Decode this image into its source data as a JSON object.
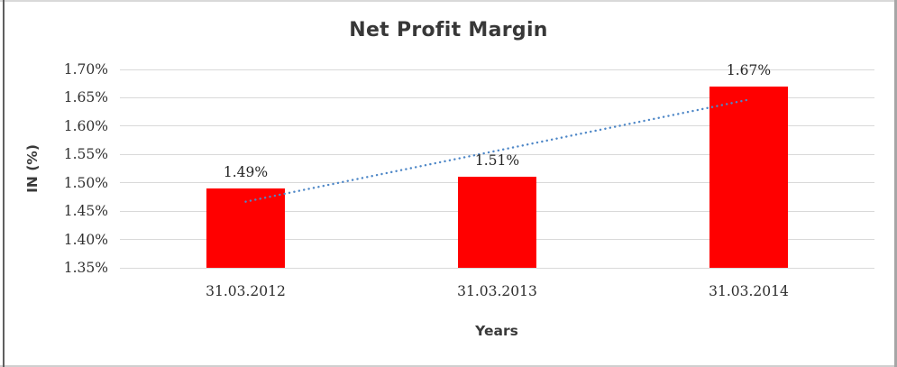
{
  "chart_data": {
    "type": "bar",
    "title": "Net Profit Margin",
    "xlabel": "Years",
    "ylabel": "IN (%)",
    "categories": [
      "31.03.2012",
      "31.03.2013",
      "31.03.2014"
    ],
    "values": [
      1.49,
      1.51,
      1.67
    ],
    "data_labels": [
      "1.49%",
      "1.51%",
      "1.67%"
    ],
    "ylim": [
      1.35,
      1.7
    ],
    "yticks": [
      {
        "label": "1.70%",
        "value": 1.7
      },
      {
        "label": "1.65%",
        "value": 1.65
      },
      {
        "label": "1.60%",
        "value": 1.6
      },
      {
        "label": "1.55%",
        "value": 1.55
      },
      {
        "label": "1.50%",
        "value": 1.5
      },
      {
        "label": "1.45%",
        "value": 1.45
      },
      {
        "label": "1.40%",
        "value": 1.4
      },
      {
        "label": "1.35%",
        "value": 1.35
      }
    ],
    "grid": true,
    "legend": "none",
    "bar_color": "#ff0000",
    "gridline_color": "#d9d9d9",
    "text_color": "#3a3a3a",
    "trendline": {
      "type": "linear",
      "style": "dotted",
      "color": "#4e87c7",
      "start_value": 1.4667,
      "end_value": 1.6467
    }
  }
}
